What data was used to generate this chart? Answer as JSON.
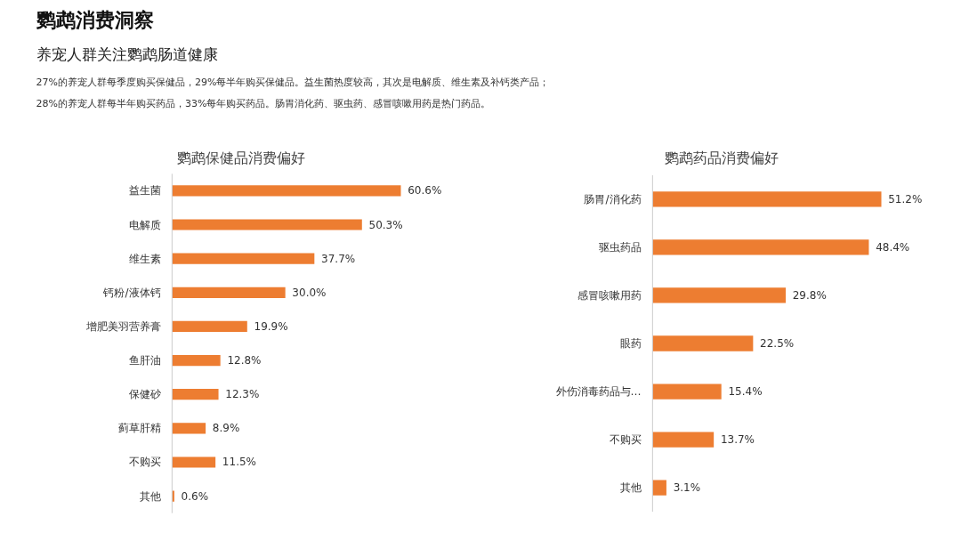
{
  "chart_data": [
    {
      "type": "other",
      "title": "鹦鹉消费洞察",
      "subtitle": "养宠人群关注鹦鹉肠道健康",
      "annotations": [
        "27%的养宠人群每季度购买保健品，29%每半年购买保健品。益生菌热度较高，其次是电解质、维生素及补钙类产品；",
        "28%的养宠人群每半年购买药品，33%每年购买药品。肠胃消化药、驱虫药、感冒咳嗽用药是热门药品。"
      ]
    },
    {
      "type": "bar",
      "orientation": "horizontal",
      "title": "鹦鹉保健品消费偏好",
      "color": "#ed7d31",
      "categories": [
        "益生菌",
        "电解质",
        "维生素",
        "钙粉/液体钙",
        "增肥美羽营养膏",
        "鱼肝油",
        "保健砂",
        "蓟草肝精",
        "不购买",
        "其他"
      ],
      "values": [
        60.6,
        50.3,
        37.7,
        30.0,
        19.9,
        12.8,
        12.3,
        8.9,
        11.5,
        0.6
      ],
      "value_labels": [
        "60.6%",
        "50.3%",
        "37.7%",
        "30.0%",
        "19.9%",
        "12.8%",
        "12.3%",
        "8.9%",
        "11.5%",
        "0.6%"
      ]
    },
    {
      "type": "bar",
      "orientation": "horizontal",
      "title": "鹦鹉药品消费偏好",
      "color": "#ed7d31",
      "categories": [
        "肠胃/消化药",
        "驱虫药品",
        "感冒咳嗽用药",
        "眼药",
        "外伤消毒药品与…",
        "不购买",
        "其他"
      ],
      "values": [
        51.2,
        48.4,
        29.8,
        22.5,
        15.4,
        13.7,
        3.1
      ],
      "value_labels": [
        "51.2%",
        "48.4%",
        "29.8%",
        "22.5%",
        "15.4%",
        "13.7%",
        "3.1%"
      ]
    }
  ]
}
